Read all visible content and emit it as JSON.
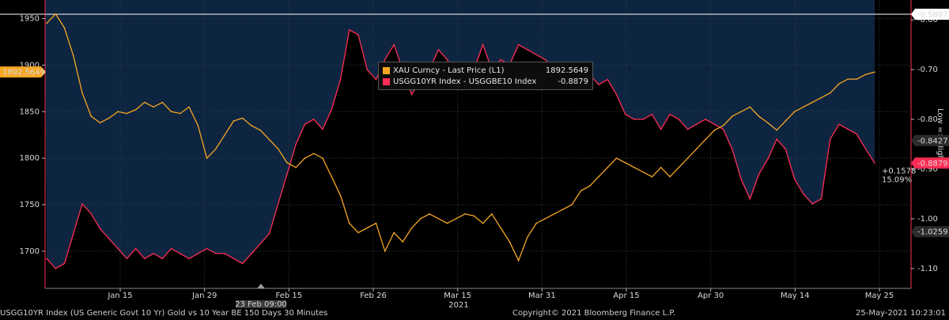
{
  "chart_data": {
    "type": "line",
    "title": "",
    "xlabel": "2021",
    "x_ticks": [
      "Jan 15",
      "Jan 29",
      "Feb 15",
      "Feb 26",
      "Mar 15",
      "Mar 31",
      "Apr 15",
      "Apr 30",
      "May 14",
      "May 25"
    ],
    "y_left_ticks": [
      "1700",
      "1750",
      "1800",
      "1850",
      "1900",
      "1950"
    ],
    "y_left_range": [
      1660,
      1970
    ],
    "y_right_ticks": [
      "-1.10",
      "-1.00",
      "-0.90",
      "-0.80",
      "-0.70",
      "-0.60"
    ],
    "y_right_range": [
      -1.14,
      -0.56
    ],
    "y_right_label": "Low => High",
    "series": [
      {
        "name": "XAU Curncy - Last Price (L1)",
        "last_value": "1892.5649",
        "color": "#f5a623",
        "axis": "left",
        "values": [
          1945,
          1955,
          1940,
          1910,
          1870,
          1845,
          1838,
          1843,
          1850,
          1848,
          1852,
          1860,
          1855,
          1860,
          1850,
          1848,
          1855,
          1835,
          1800,
          1810,
          1825,
          1840,
          1843,
          1835,
          1830,
          1820,
          1810,
          1795,
          1790,
          1800,
          1805,
          1800,
          1780,
          1760,
          1730,
          1720,
          1725,
          1730,
          1700,
          1720,
          1710,
          1725,
          1735,
          1740,
          1735,
          1730,
          1735,
          1740,
          1738,
          1730,
          1740,
          1725,
          1710,
          1690,
          1715,
          1730,
          1735,
          1740,
          1745,
          1750,
          1765,
          1770,
          1780,
          1790,
          1800,
          1795,
          1790,
          1785,
          1780,
          1790,
          1780,
          1790,
          1800,
          1810,
          1820,
          1830,
          1835,
          1845,
          1850,
          1855,
          1845,
          1838,
          1830,
          1840,
          1850,
          1855,
          1860,
          1865,
          1870,
          1880,
          1885,
          1885,
          1890,
          1892.56
        ]
      },
      {
        "name": "USGG10YR Index - USGGBE10 Index",
        "last_value": "-0.8879",
        "color": "#ff2d55",
        "axis": "right",
        "values": [
          -1.08,
          -1.1,
          -1.09,
          -1.03,
          -0.97,
          -0.99,
          -1.02,
          -1.04,
          -1.06,
          -1.08,
          -1.06,
          -1.08,
          -1.07,
          -1.08,
          -1.06,
          -1.07,
          -1.08,
          -1.07,
          -1.06,
          -1.07,
          -1.07,
          -1.08,
          -1.09,
          -1.07,
          -1.05,
          -1.03,
          -0.97,
          -0.91,
          -0.85,
          -0.81,
          -0.8,
          -0.82,
          -0.78,
          -0.72,
          -0.62,
          -0.63,
          -0.7,
          -0.72,
          -0.68,
          -0.65,
          -0.7,
          -0.75,
          -0.72,
          -0.7,
          -0.66,
          -0.68,
          -0.72,
          -0.71,
          -0.7,
          -0.65,
          -0.7,
          -0.68,
          -0.69,
          -0.65,
          -0.66,
          -0.67,
          -0.68,
          -0.7,
          -0.72,
          -0.71,
          -0.7,
          -0.71,
          -0.73,
          -0.72,
          -0.75,
          -0.79,
          -0.8,
          -0.8,
          -0.79,
          -0.82,
          -0.79,
          -0.8,
          -0.82,
          -0.81,
          -0.8,
          -0.81,
          -0.82,
          -0.86,
          -0.92,
          -0.96,
          -0.91,
          -0.88,
          -0.84,
          -0.86,
          -0.92,
          -0.95,
          -0.97,
          -0.96,
          -0.84,
          -0.81,
          -0.82,
          -0.83,
          -0.86,
          -0.8879
        ]
      }
    ],
    "right_axis_markers": [
      "-1.0259",
      "-0.8879",
      "-0.8427",
      "-0.5887"
    ],
    "side_annotations": [
      "+0.1578",
      "15.09%"
    ],
    "x_cursor_label": "23 Feb 09:00"
  },
  "footer": {
    "left": "USGG10YR Index (US Generic Govt 10 Yr) Gold vs 10 Year BE 150 Days 30 Minutes",
    "center": "Copyright© 2021 Bloomberg Finance L.P.",
    "right": "25-May-2021 10:23:01"
  }
}
